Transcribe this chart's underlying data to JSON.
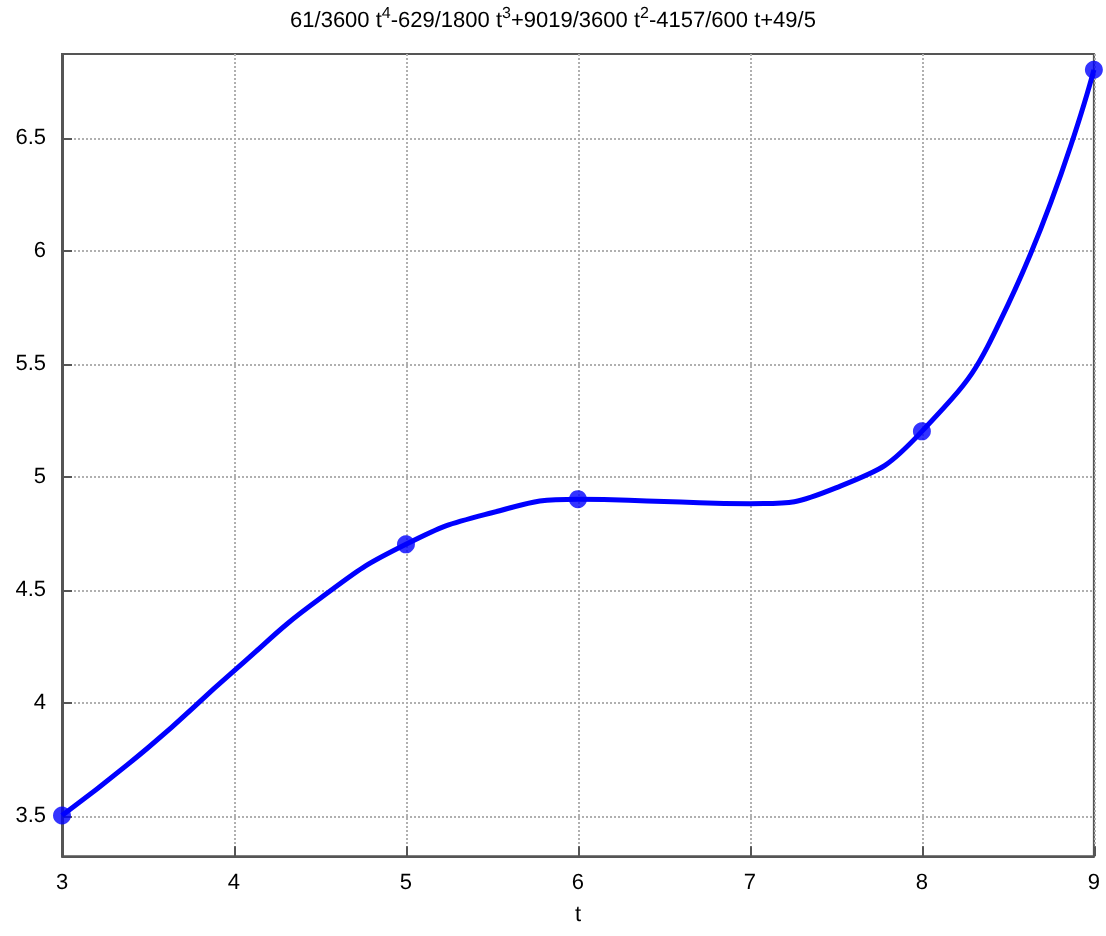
{
  "chart_data": {
    "type": "line",
    "title": "61/3600 t$^{4}$-629/1800 t$^{3}$+9019/3600 t$^{2}$-4157/600 t+49/5",
    "xlabel": "t",
    "series": [
      {
        "color": "#0000ff",
        "marker": "none",
        "line_style": "solid",
        "x": [
          3,
          3.5,
          4,
          4.5,
          5,
          5.5,
          6,
          6.5,
          7,
          7.5,
          8,
          8.5,
          9
        ],
        "values": [
          3.5,
          3.8,
          4.14,
          4.46,
          4.7,
          4.84,
          4.9,
          4.89,
          4.88,
          4.95,
          5.2,
          5.76,
          6.8
        ]
      },
      {
        "type": "scatter",
        "color": "#0000ff",
        "marker": "circle",
        "x": [
          3,
          5,
          6,
          8,
          9
        ],
        "values": [
          3.5,
          4.7,
          4.9,
          5.2,
          6.8
        ]
      }
    ],
    "xlim": [
      3,
      9
    ],
    "xticks": [
      3,
      4,
      5,
      6,
      7,
      8,
      9
    ],
    "ylim": [
      3.32,
      6.87
    ],
    "yticks": [
      3.5,
      4,
      4.5,
      5,
      5.5,
      6,
      6.5
    ],
    "grid": true
  }
}
